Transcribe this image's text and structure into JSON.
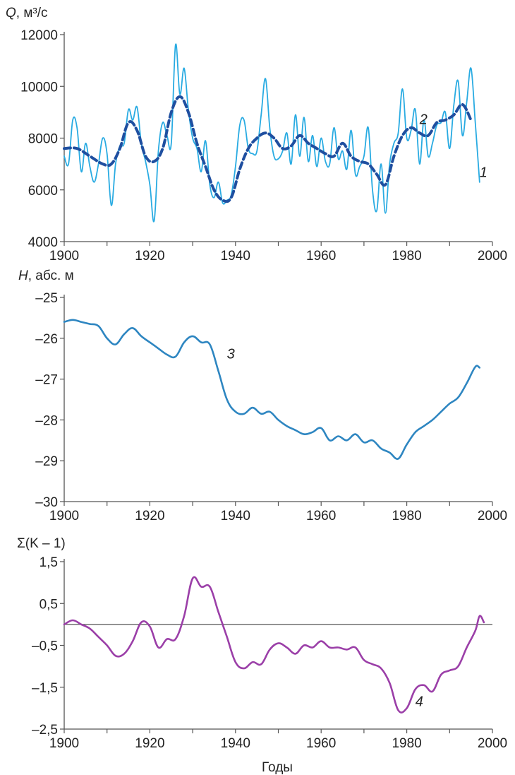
{
  "chart_data": [
    {
      "type": "line",
      "y_title_var": "Q",
      "y_title_unit": ", м³/с",
      "xlim": [
        1900,
        2000
      ],
      "ylim": [
        4000,
        12000
      ],
      "x_ticks": [
        "1900",
        "1920",
        "1940",
        "1960",
        "1980",
        "2000"
      ],
      "y_ticks": [
        "12000",
        "10000",
        "8000",
        "6000",
        "4000"
      ],
      "y_tick_values": [
        12000,
        10000,
        8000,
        6000,
        4000
      ],
      "grid": false,
      "series": [
        {
          "name": "1",
          "color": "#29abe2",
          "style": "solid",
          "points": [
            [
              1900,
              7300
            ],
            [
              1901,
              7000
            ],
            [
              1902,
              8700
            ],
            [
              1903,
              8400
            ],
            [
              1904,
              6700
            ],
            [
              1905,
              7800
            ],
            [
              1906,
              6900
            ],
            [
              1907,
              6300
            ],
            [
              1908,
              7000
            ],
            [
              1909,
              8000
            ],
            [
              1910,
              7400
            ],
            [
              1911,
              5400
            ],
            [
              1912,
              7000
            ],
            [
              1913,
              7700
            ],
            [
              1914,
              7800
            ],
            [
              1915,
              9100
            ],
            [
              1916,
              8700
            ],
            [
              1917,
              9200
            ],
            [
              1918,
              7800
            ],
            [
              1919,
              7100
            ],
            [
              1920,
              6200
            ],
            [
              1921,
              4800
            ],
            [
              1922,
              7500
            ],
            [
              1923,
              8600
            ],
            [
              1924,
              8100
            ],
            [
              1925,
              7800
            ],
            [
              1926,
              11600
            ],
            [
              1927,
              9700
            ],
            [
              1928,
              10700
            ],
            [
              1929,
              9100
            ],
            [
              1930,
              8000
            ],
            [
              1931,
              7600
            ],
            [
              1932,
              6700
            ],
            [
              1933,
              7900
            ],
            [
              1934,
              6200
            ],
            [
              1935,
              5700
            ],
            [
              1936,
              6300
            ],
            [
              1937,
              5500
            ],
            [
              1938,
              5600
            ],
            [
              1939,
              5800
            ],
            [
              1940,
              6900
            ],
            [
              1941,
              8500
            ],
            [
              1942,
              8700
            ],
            [
              1943,
              7600
            ],
            [
              1944,
              7400
            ],
            [
              1945,
              7500
            ],
            [
              1946,
              8900
            ],
            [
              1947,
              10300
            ],
            [
              1948,
              8400
            ],
            [
              1949,
              7300
            ],
            [
              1950,
              7200
            ],
            [
              1951,
              7500
            ],
            [
              1952,
              8200
            ],
            [
              1953,
              7000
            ],
            [
              1954,
              8900
            ],
            [
              1955,
              7300
            ],
            [
              1956,
              8800
            ],
            [
              1957,
              7100
            ],
            [
              1958,
              8100
            ],
            [
              1959,
              6900
            ],
            [
              1960,
              8000
            ],
            [
              1961,
              7100
            ],
            [
              1962,
              7000
            ],
            [
              1963,
              8400
            ],
            [
              1964,
              7200
            ],
            [
              1965,
              7500
            ],
            [
              1966,
              6800
            ],
            [
              1967,
              8300
            ],
            [
              1968,
              6600
            ],
            [
              1969,
              6900
            ],
            [
              1970,
              7300
            ],
            [
              1971,
              8400
            ],
            [
              1972,
              6000
            ],
            [
              1973,
              5200
            ],
            [
              1974,
              7000
            ],
            [
              1975,
              5100
            ],
            [
              1976,
              7000
            ],
            [
              1977,
              7800
            ],
            [
              1978,
              8200
            ],
            [
              1979,
              9900
            ],
            [
              1980,
              8000
            ],
            [
              1981,
              8300
            ],
            [
              1982,
              9100
            ],
            [
              1983,
              7000
            ],
            [
              1984,
              8700
            ],
            [
              1985,
              7300
            ],
            [
              1986,
              7800
            ],
            [
              1987,
              8500
            ],
            [
              1988,
              8600
            ],
            [
              1989,
              9000
            ],
            [
              1990,
              7600
            ],
            [
              1991,
              9300
            ],
            [
              1992,
              10200
            ],
            [
              1993,
              8100
            ],
            [
              1994,
              9400
            ],
            [
              1995,
              10700
            ],
            [
              1996,
              8600
            ],
            [
              1997,
              6300
            ]
          ]
        },
        {
          "name": "2",
          "color": "#1f4fa0",
          "style": "dashed",
          "points": [
            [
              1900,
              7600
            ],
            [
              1903,
              7600
            ],
            [
              1906,
              7300
            ],
            [
              1909,
              7000
            ],
            [
              1911,
              7000
            ],
            [
              1913,
              7600
            ],
            [
              1915,
              8600
            ],
            [
              1917,
              8300
            ],
            [
              1919,
              7300
            ],
            [
              1921,
              7100
            ],
            [
              1923,
              7600
            ],
            [
              1925,
              9000
            ],
            [
              1927,
              9600
            ],
            [
              1929,
              9000
            ],
            [
              1931,
              7800
            ],
            [
              1933,
              6900
            ],
            [
              1935,
              6000
            ],
            [
              1937,
              5600
            ],
            [
              1939,
              5700
            ],
            [
              1941,
              6800
            ],
            [
              1943,
              7600
            ],
            [
              1945,
              8000
            ],
            [
              1947,
              8200
            ],
            [
              1949,
              8000
            ],
            [
              1951,
              7600
            ],
            [
              1953,
              7700
            ],
            [
              1955,
              8100
            ],
            [
              1957,
              7800
            ],
            [
              1959,
              7600
            ],
            [
              1961,
              7400
            ],
            [
              1963,
              7300
            ],
            [
              1965,
              7800
            ],
            [
              1967,
              7300
            ],
            [
              1969,
              7100
            ],
            [
              1971,
              7000
            ],
            [
              1973,
              6600
            ],
            [
              1975,
              6200
            ],
            [
              1977,
              7300
            ],
            [
              1979,
              8100
            ],
            [
              1981,
              8400
            ],
            [
              1983,
              8200
            ],
            [
              1985,
              8100
            ],
            [
              1987,
              8600
            ],
            [
              1989,
              8700
            ],
            [
              1991,
              8900
            ],
            [
              1993,
              9300
            ],
            [
              1995,
              8700
            ]
          ]
        }
      ],
      "curve_labels": [
        {
          "text": "1",
          "x": 1997,
          "y": 6500
        },
        {
          "text": "2",
          "x": 1983,
          "y": 8550
        }
      ]
    },
    {
      "type": "line",
      "y_title_var": "H",
      "y_title_unit": ", абс. м",
      "xlim": [
        1900,
        2000
      ],
      "ylim": [
        -30,
        -25
      ],
      "x_ticks": [
        "1900",
        "1920",
        "1940",
        "1960",
        "1980",
        "2000"
      ],
      "y_ticks": [
        "–25",
        "–26",
        "–27",
        "–28",
        "–29",
        "–30"
      ],
      "y_tick_values": [
        -25,
        -26,
        -27,
        -28,
        -29,
        -30
      ],
      "grid": false,
      "series": [
        {
          "name": "3",
          "color": "#2e86c1",
          "style": "solid",
          "points": [
            [
              1900,
              -25.6
            ],
            [
              1902,
              -25.55
            ],
            [
              1904,
              -25.6
            ],
            [
              1906,
              -25.65
            ],
            [
              1908,
              -25.7
            ],
            [
              1910,
              -26.0
            ],
            [
              1912,
              -26.15
            ],
            [
              1914,
              -25.9
            ],
            [
              1916,
              -25.75
            ],
            [
              1918,
              -25.95
            ],
            [
              1920,
              -26.1
            ],
            [
              1922,
              -26.25
            ],
            [
              1924,
              -26.4
            ],
            [
              1926,
              -26.45
            ],
            [
              1928,
              -26.1
            ],
            [
              1930,
              -25.95
            ],
            [
              1932,
              -26.1
            ],
            [
              1934,
              -26.15
            ],
            [
              1936,
              -26.8
            ],
            [
              1938,
              -27.5
            ],
            [
              1940,
              -27.8
            ],
            [
              1942,
              -27.85
            ],
            [
              1944,
              -27.7
            ],
            [
              1946,
              -27.85
            ],
            [
              1948,
              -27.8
            ],
            [
              1950,
              -28.0
            ],
            [
              1952,
              -28.15
            ],
            [
              1954,
              -28.25
            ],
            [
              1956,
              -28.35
            ],
            [
              1958,
              -28.3
            ],
            [
              1960,
              -28.2
            ],
            [
              1962,
              -28.5
            ],
            [
              1964,
              -28.4
            ],
            [
              1966,
              -28.5
            ],
            [
              1968,
              -28.35
            ],
            [
              1970,
              -28.55
            ],
            [
              1972,
              -28.5
            ],
            [
              1974,
              -28.7
            ],
            [
              1976,
              -28.8
            ],
            [
              1978,
              -28.95
            ],
            [
              1980,
              -28.6
            ],
            [
              1982,
              -28.3
            ],
            [
              1984,
              -28.15
            ],
            [
              1986,
              -28.0
            ],
            [
              1988,
              -27.8
            ],
            [
              1990,
              -27.6
            ],
            [
              1992,
              -27.45
            ],
            [
              1994,
              -27.1
            ],
            [
              1996,
              -26.7
            ],
            [
              1997,
              -26.72
            ]
          ]
        }
      ],
      "curve_labels": [
        {
          "text": "3",
          "x": 1938,
          "y": -26.5
        }
      ]
    },
    {
      "type": "line",
      "y_title": "Σ(K – 1)",
      "xlim": [
        1900,
        2000
      ],
      "ylim": [
        -2.5,
        1.5
      ],
      "x_ticks": [
        "1900",
        "1920",
        "1940",
        "1960",
        "1980",
        "2000"
      ],
      "y_ticks": [
        "1,5",
        "0,5",
        "–0,5",
        "–1,5",
        "–2,5"
      ],
      "y_tick_values": [
        1.5,
        0.5,
        -0.5,
        -1.5,
        -2.5
      ],
      "x_axis_title": "Годы",
      "grid": false,
      "reference_line_y": 0,
      "series": [
        {
          "name": "4",
          "color": "#9b3fa8",
          "style": "solid",
          "points": [
            [
              1900,
              0.0
            ],
            [
              1902,
              0.1
            ],
            [
              1904,
              0.0
            ],
            [
              1906,
              -0.1
            ],
            [
              1908,
              -0.3
            ],
            [
              1910,
              -0.5
            ],
            [
              1912,
              -0.75
            ],
            [
              1914,
              -0.7
            ],
            [
              1916,
              -0.4
            ],
            [
              1918,
              0.05
            ],
            [
              1920,
              -0.05
            ],
            [
              1922,
              -0.55
            ],
            [
              1924,
              -0.35
            ],
            [
              1926,
              -0.35
            ],
            [
              1928,
              0.2
            ],
            [
              1930,
              1.1
            ],
            [
              1932,
              0.9
            ],
            [
              1934,
              0.9
            ],
            [
              1936,
              0.3
            ],
            [
              1938,
              -0.3
            ],
            [
              1940,
              -0.9
            ],
            [
              1942,
              -1.05
            ],
            [
              1944,
              -0.9
            ],
            [
              1946,
              -0.95
            ],
            [
              1948,
              -0.6
            ],
            [
              1950,
              -0.45
            ],
            [
              1952,
              -0.55
            ],
            [
              1954,
              -0.7
            ],
            [
              1956,
              -0.5
            ],
            [
              1958,
              -0.55
            ],
            [
              1960,
              -0.4
            ],
            [
              1962,
              -0.55
            ],
            [
              1964,
              -0.55
            ],
            [
              1966,
              -0.6
            ],
            [
              1968,
              -0.55
            ],
            [
              1970,
              -0.85
            ],
            [
              1972,
              -0.95
            ],
            [
              1974,
              -1.05
            ],
            [
              1976,
              -1.4
            ],
            [
              1978,
              -2.05
            ],
            [
              1980,
              -2.0
            ],
            [
              1982,
              -1.55
            ],
            [
              1984,
              -1.45
            ],
            [
              1986,
              -1.6
            ],
            [
              1988,
              -1.2
            ],
            [
              1990,
              -1.1
            ],
            [
              1992,
              -1.0
            ],
            [
              1994,
              -0.55
            ],
            [
              1996,
              -0.15
            ],
            [
              1997,
              0.2
            ],
            [
              1998,
              0.05
            ]
          ]
        }
      ],
      "curve_labels": [
        {
          "text": "4",
          "x": 1982,
          "y": -1.95
        }
      ]
    }
  ]
}
